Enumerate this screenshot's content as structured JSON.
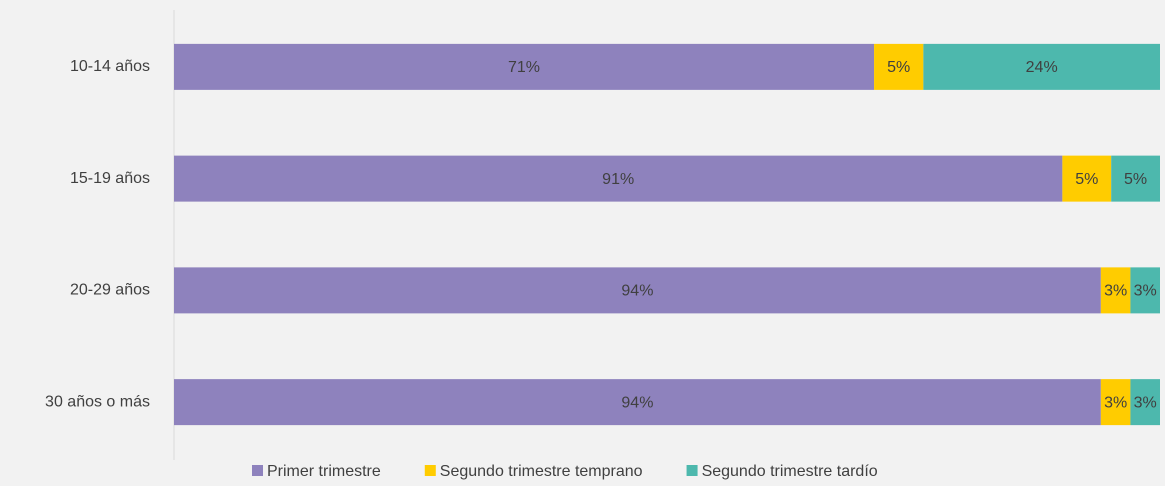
{
  "chart_data": {
    "type": "bar",
    "categories": [
      "10-14 años",
      "15-19 años",
      "20-29 años",
      "30 años o más"
    ],
    "series": [
      {
        "name": "Primer trimestre",
        "color": "#8e82bd",
        "values": [
          71,
          91,
          94,
          94
        ]
      },
      {
        "name": "Segundo trimestre temprano",
        "color": "#ffcc00",
        "values": [
          5,
          5,
          3,
          3
        ]
      },
      {
        "name": "Segundo trimestre tardío",
        "color": "#4db8ad",
        "values": [
          24,
          5,
          3,
          3
        ]
      }
    ],
    "value_labels": [
      [
        "71%",
        "91%",
        "94%",
        "94%"
      ],
      [
        "5%",
        "5%",
        "3%",
        "3%"
      ],
      [
        "24%",
        "5%",
        "3%",
        "3%"
      ]
    ],
    "legend": "bottom"
  }
}
